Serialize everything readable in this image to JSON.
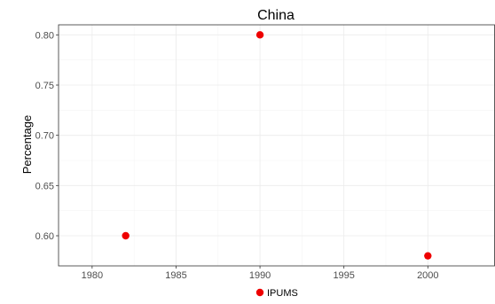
{
  "chart_data": {
    "type": "scatter",
    "title": "China",
    "xlabel": "",
    "ylabel": "Percentage",
    "xlim": [
      1978,
      2004
    ],
    "ylim": [
      0.57,
      0.81
    ],
    "x_ticks": [
      1980,
      1985,
      1990,
      1995,
      2000
    ],
    "y_ticks": [
      0.6,
      0.65,
      0.7,
      0.75,
      0.8
    ],
    "x_tick_labels": [
      "1980",
      "1985",
      "1990",
      "1995",
      "2000"
    ],
    "y_tick_labels": [
      "0.60",
      "0.65",
      "0.70",
      "0.75",
      "0.80"
    ],
    "grid": true,
    "legend_position": "bottom",
    "series": [
      {
        "name": "IPUMS",
        "color": "#ee0000",
        "points": [
          {
            "x": 1982,
            "y": 0.6
          },
          {
            "x": 1990,
            "y": 0.8
          },
          {
            "x": 2000,
            "y": 0.58
          }
        ]
      }
    ]
  }
}
